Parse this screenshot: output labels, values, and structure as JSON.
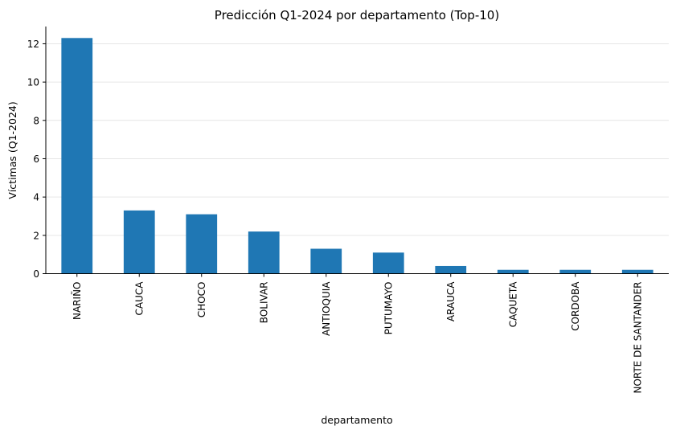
{
  "chart_data": {
    "type": "bar",
    "title": "Predicción Q1-2024 por departamento (Top-10)",
    "xlabel": "departamento",
    "ylabel": "Víctimas (Q1-2024)",
    "categories": [
      "NARIÑO",
      "CAUCA",
      "CHOCO",
      "BOLIVAR",
      "ANTIOQUIA",
      "PUTUMAYO",
      "ARAUCA",
      "CAQUETA",
      "CORDOBA",
      "NORTE DE SANTANDER"
    ],
    "values": [
      12.3,
      3.3,
      3.1,
      2.2,
      1.3,
      1.1,
      0.4,
      0.2,
      0.2,
      0.2
    ],
    "ylim": [
      0,
      12.9
    ],
    "yticks": [
      0,
      2,
      4,
      6,
      8,
      10,
      12
    ],
    "grid": "y",
    "bar_color": "#1f77b4",
    "grid_color": "#e6e6e6"
  }
}
